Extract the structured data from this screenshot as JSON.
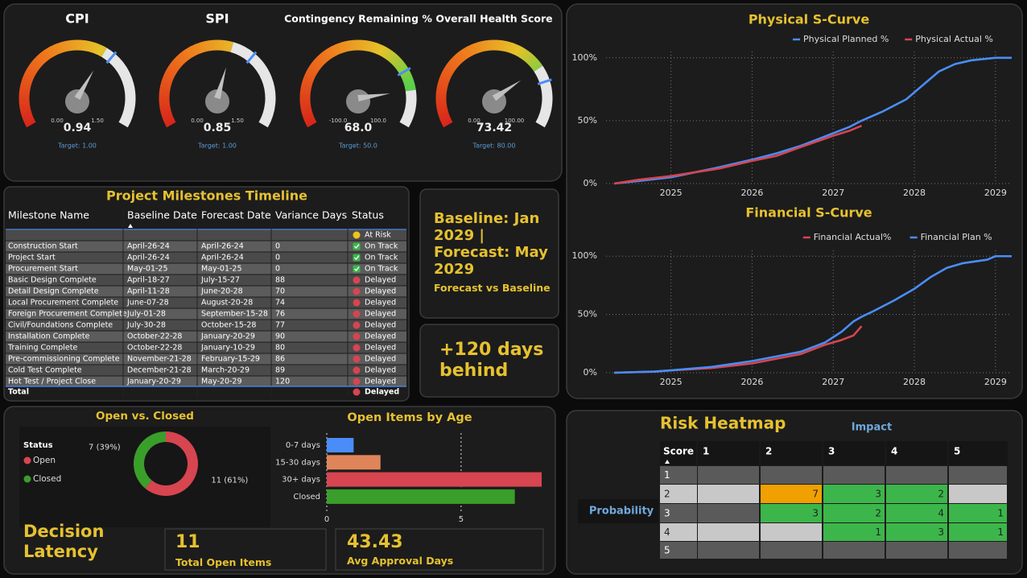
{
  "chart_data": [
    {
      "type": "gauge",
      "title": "CPI",
      "value": 0.94,
      "ylim": [
        0,
        1.5
      ],
      "yticks": [
        {
          "value": 0,
          "label": "0.00"
        },
        {
          "value": 1.5,
          "label": "1.50"
        }
      ],
      "target": 1,
      "target_label": "Target: 1.00"
    },
    {
      "type": "gauge",
      "title": "SPI",
      "value": 0.85,
      "ylim": [
        0,
        1.5
      ],
      "yticks": [
        {
          "value": 0,
          "label": "0.00"
        },
        {
          "value": 1.5,
          "label": "1.50"
        }
      ],
      "target": 1,
      "target_label": "Target: 1.00"
    },
    {
      "type": "gauge",
      "title": "Contingency Remaining %",
      "value": 68,
      "value_label": "68.0",
      "ylim": [
        -100,
        100
      ],
      "yticks": [
        {
          "value": -100,
          "label": "-100.0"
        },
        {
          "value": 100,
          "label": "100.0"
        }
      ],
      "target": 50,
      "target_label": "Target: 50.0"
    },
    {
      "type": "gauge",
      "title": "Overall Health Score",
      "value": 73.42,
      "ylim": [
        0,
        100
      ],
      "yticks": [
        {
          "value": 0,
          "label": "0.00"
        },
        {
          "value": 100,
          "label": "100.00"
        }
      ],
      "target": 80,
      "target_label": "Target: 80.00"
    },
    {
      "type": "line",
      "title": "Physical S-Curve",
      "legend": "top-right",
      "grid": true,
      "x": [
        2024.3,
        2024.6,
        2025.0,
        2025.3,
        2025.6,
        2026.0,
        2026.3,
        2026.6,
        2027.0,
        2027.2,
        2027.35,
        2027.6,
        2027.9,
        2028.1,
        2028.3,
        2028.5,
        2028.7,
        2029.0,
        2029.2
      ],
      "series": [
        {
          "name": "Physical Planned %",
          "color": "#4a8df8",
          "values": [
            0,
            2,
            5,
            9,
            13,
            19,
            24,
            30,
            40,
            45,
            50,
            57,
            67,
            78,
            89,
            95,
            98,
            100,
            100
          ]
        },
        {
          "name": "Physical Actual %",
          "color": "#d64550",
          "values": [
            0,
            3,
            6,
            9,
            12,
            18,
            22,
            29,
            38,
            42,
            46,
            null,
            null,
            null,
            null,
            null,
            null,
            null,
            null
          ]
        }
      ],
      "xlim": [
        2024.2,
        2029.2
      ],
      "xticks": [
        2025,
        2026,
        2027,
        2028,
        2029
      ],
      "ylim": [
        0,
        105
      ],
      "yticks": [
        {
          "value": 0,
          "label": "0%"
        },
        {
          "value": 50,
          "label": "50%"
        },
        {
          "value": 100,
          "label": "100%"
        }
      ]
    },
    {
      "type": "line",
      "title": "Financial S-Curve",
      "legend": "top-right",
      "grid": true,
      "x": [
        2024.3,
        2024.8,
        2025.0,
        2025.5,
        2026.0,
        2026.3,
        2026.6,
        2026.9,
        2027.1,
        2027.25,
        2027.35,
        2027.5,
        2027.75,
        2028.0,
        2028.2,
        2028.4,
        2028.6,
        2028.9,
        2029.0,
        2029.2
      ],
      "series": [
        {
          "name": "Financial Actual%",
          "color": "#d64550",
          "values": [
            0,
            1,
            2,
            4,
            8,
            12,
            16,
            24,
            28,
            32,
            40,
            null,
            null,
            null,
            null,
            null,
            null,
            null,
            null,
            null
          ]
        },
        {
          "name": "Financial Plan %",
          "color": "#4a8df8",
          "values": [
            0,
            1,
            2,
            5,
            10,
            14,
            18,
            26,
            35,
            44,
            48,
            53,
            62,
            72,
            82,
            90,
            94,
            97,
            100,
            100
          ]
        }
      ],
      "xlim": [
        2024.2,
        2029.2
      ],
      "xticks": [
        2025,
        2026,
        2027,
        2028,
        2029
      ],
      "ylim": [
        0,
        105
      ],
      "yticks": [
        {
          "value": 0,
          "label": "0%"
        },
        {
          "value": 50,
          "label": "50%"
        },
        {
          "value": 100,
          "label": "100%"
        }
      ]
    },
    {
      "type": "pie",
      "donut": true,
      "title": "Open vs. Closed",
      "legend_title": "Status",
      "categories": [
        "Open",
        "Closed"
      ],
      "values": [
        11,
        7
      ],
      "value_labels": [
        "11 (61%)",
        "7 (39%)"
      ],
      "colors": [
        "#d64550",
        "#3a9e2a"
      ]
    },
    {
      "type": "bar",
      "orientation": "horizontal",
      "title": "Open Items by Age",
      "categories": [
        "0-7 days",
        "15-30 days",
        "30+ days",
        "Closed"
      ],
      "values": [
        1,
        2,
        8,
        7
      ],
      "colors": [
        "#4a8df8",
        "#e0855a",
        "#d64550",
        "#3a9e2a"
      ],
      "xlim": [
        0,
        8
      ],
      "xticks": [
        0,
        5
      ],
      "grid": true
    },
    {
      "type": "heatmap",
      "title": "Risk Heatmap",
      "x_label": "Impact",
      "y_label": "Probability",
      "corner_label": "Score",
      "x_categories": [
        1,
        2,
        3,
        4,
        5
      ],
      "y_categories": [
        1,
        2,
        3,
        4,
        5
      ],
      "values": [
        [
          null,
          null,
          null,
          null,
          null
        ],
        [
          null,
          7,
          3,
          2,
          null
        ],
        [
          null,
          3,
          2,
          4,
          1
        ],
        [
          null,
          null,
          1,
          3,
          1
        ],
        [
          null,
          null,
          null,
          null,
          null
        ]
      ],
      "colors": [
        [
          null,
          null,
          null,
          null,
          null
        ],
        [
          null,
          "#f0a000",
          "#3cb64a",
          "#3cb64a",
          null
        ],
        [
          null,
          "#3cb64a",
          "#3cb64a",
          "#3cb64a",
          "#3cb64a"
        ],
        [
          null,
          null,
          "#3cb64a",
          "#3cb64a",
          "#3cb64a"
        ],
        [
          null,
          null,
          null,
          null,
          null
        ]
      ]
    }
  ],
  "milestones": {
    "title": "Project Milestones Timeline",
    "columns": [
      "Milestone Name",
      "Baseline Date",
      "Forecast Date",
      "Variance Days",
      "Status"
    ],
    "rows": [
      [
        null,
        null,
        null,
        null,
        "At Risk"
      ],
      [
        "Construction Start",
        "April-26-24",
        "April-26-24",
        0,
        "On Track"
      ],
      [
        "Project Start",
        "April-26-24",
        "April-26-24",
        0,
        "On Track"
      ],
      [
        "Procurement Start",
        "May-01-25",
        "May-01-25",
        0,
        "On Track"
      ],
      [
        "Basic Design Complete",
        "April-18-27",
        "July-15-27",
        88,
        "Delayed"
      ],
      [
        "Detail Design Complete",
        "April-11-28",
        "June-20-28",
        70,
        "Delayed"
      ],
      [
        "Local Procurement Complete",
        "June-07-28",
        "August-20-28",
        74,
        "Delayed"
      ],
      [
        "Foreign Procurement Complete",
        "July-01-28",
        "September-15-28",
        76,
        "Delayed"
      ],
      [
        "Civil/Foundations Complete",
        "July-30-28",
        "October-15-28",
        77,
        "Delayed"
      ],
      [
        "Installation Complete",
        "October-22-28",
        "January-20-29",
        90,
        "Delayed"
      ],
      [
        "Training Complete",
        "October-22-28",
        "January-10-29",
        80,
        "Delayed"
      ],
      [
        "Pre-commissioning Complete",
        "November-21-28",
        "February-15-29",
        86,
        "Delayed"
      ],
      [
        "Cold Test Complete",
        "December-21-28",
        "March-20-29",
        89,
        "Delayed"
      ],
      [
        "Hot Test / Project Close",
        "January-20-29",
        "May-20-29",
        120,
        "Delayed"
      ]
    ],
    "status_colors": [
      "#f0c419",
      "#3cb64a",
      "#3cb64a",
      "#3cb64a",
      "#d64550",
      "#d64550",
      "#d64550",
      "#d64550",
      "#d64550",
      "#d64550",
      "#d64550",
      "#d64550",
      "#d64550",
      "#d64550"
    ],
    "status_icons": [
      "dot",
      "check",
      "check",
      "check",
      "dot",
      "dot",
      "dot",
      "dot",
      "dot",
      "dot",
      "dot",
      "dot",
      "dot",
      "dot"
    ],
    "total": {
      "label": "Total",
      "status": "Delayed",
      "status_color": "#d64550"
    }
  },
  "cards": [
    {
      "text": "Baseline: Jan 2029 | Forecast: May 2029",
      "subtitle": "Forecast vs Baseline"
    },
    {
      "text": "+120 days behind"
    }
  ],
  "decision_latency": {
    "title": "Decision Latency",
    "kpis": [
      {
        "value": 11,
        "label": "Total Open Items"
      },
      {
        "value": 43.43,
        "label": "Avg Approval Days"
      }
    ]
  }
}
